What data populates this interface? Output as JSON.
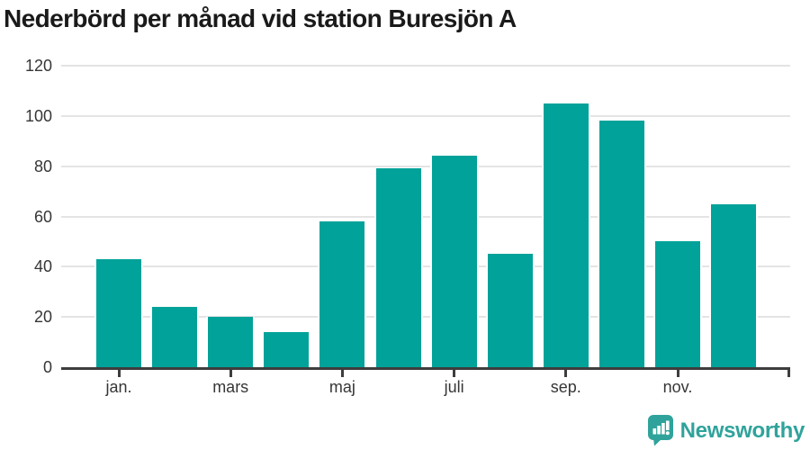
{
  "title": "Nederbörd per månad vid station Buresjön A",
  "chart_data": {
    "type": "bar",
    "title": "Nederbörd per månad vid station Buresjön A",
    "values": [
      43,
      24,
      20,
      14,
      58,
      79,
      84,
      45,
      105,
      98,
      50,
      65
    ],
    "x_tick_labels": [
      "jan.",
      "mars",
      "maj",
      "juli",
      "sep.",
      "nov."
    ],
    "y_ticks": [
      0,
      20,
      40,
      60,
      80,
      100,
      120
    ],
    "ylim": [
      0,
      120
    ],
    "xlabel": "",
    "ylabel": "",
    "grid": true,
    "legend": "none",
    "bar_color": "#00a299",
    "gridline_color": "#e4e4e4",
    "axis_color": "#3d3d3d"
  },
  "branding": {
    "logo_text": "Newsworthy",
    "logo_color": "#2fa39b",
    "logo_icon": "speech-bubble-bar-chart-icon"
  }
}
